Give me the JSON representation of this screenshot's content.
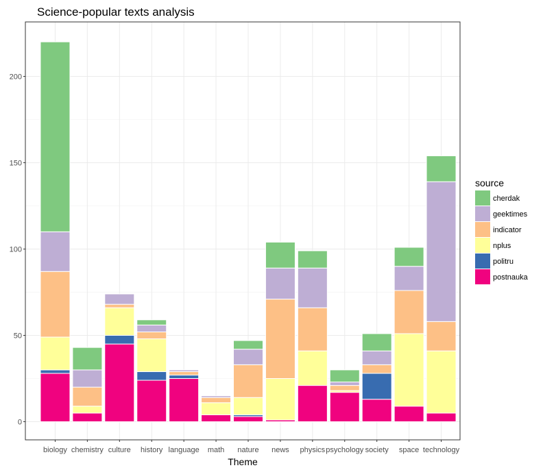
{
  "chart_data": {
    "type": "bar",
    "stacked": true,
    "title": "Science-popular texts analysis",
    "xlabel": "Theme",
    "ylabel": "",
    "ylim": [
      0,
      221
    ],
    "yticks": [
      0,
      50,
      100,
      150,
      200
    ],
    "grid": true,
    "legend_title": "source",
    "legend_position": "right",
    "categories": [
      "biology",
      "chemistry",
      "culture",
      "history",
      "language",
      "math",
      "nature",
      "news",
      "physics",
      "psychology",
      "society",
      "space",
      "technology"
    ],
    "series": [
      {
        "name": "postnauka",
        "color": "#F0027F",
        "values": [
          28,
          5,
          45,
          24,
          25,
          4,
          3,
          1,
          21,
          17,
          13,
          9,
          5
        ]
      },
      {
        "name": "politru",
        "color": "#386CB0",
        "values": [
          2,
          0,
          5,
          5,
          2,
          0,
          1,
          0,
          0,
          0,
          15,
          0,
          0
        ]
      },
      {
        "name": "nplus",
        "color": "#FFFF99",
        "values": [
          19,
          4,
          16,
          19,
          0,
          7,
          10,
          24,
          20,
          1,
          0,
          42,
          36
        ]
      },
      {
        "name": "indicator",
        "color": "#FDC086",
        "values": [
          38,
          11,
          2,
          4,
          2,
          3,
          19,
          46,
          25,
          3,
          5,
          25,
          17
        ]
      },
      {
        "name": "geektimes",
        "color": "#BEAED4",
        "values": [
          23,
          10,
          6,
          4,
          1,
          1,
          9,
          18,
          23,
          2,
          8,
          14,
          81
        ]
      },
      {
        "name": "cherdak",
        "color": "#7FC97F",
        "values": [
          110,
          13,
          0,
          3,
          0,
          0,
          5,
          15,
          10,
          7,
          10,
          11,
          15
        ]
      }
    ]
  }
}
